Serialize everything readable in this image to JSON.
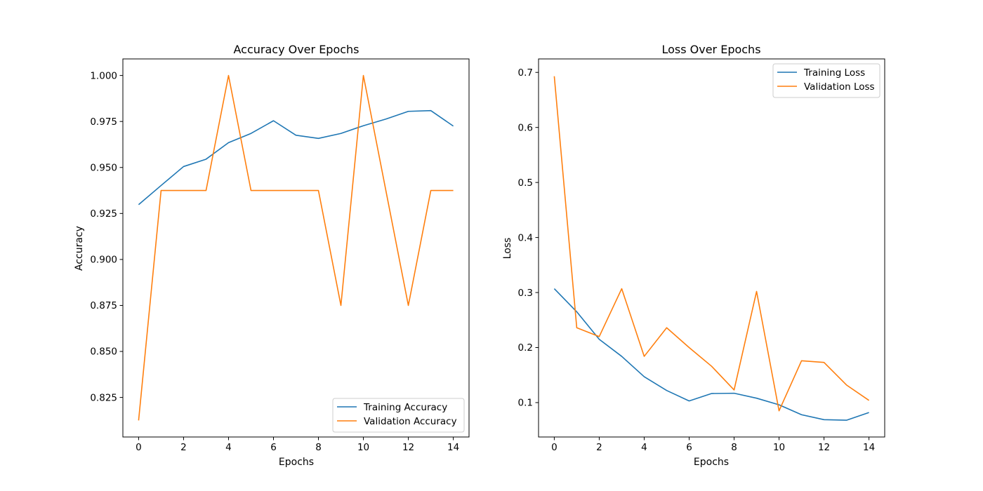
{
  "colors": {
    "training": "#1f77b4",
    "validation": "#ff7f0e"
  },
  "chart_data": [
    {
      "type": "line",
      "title": "Accuracy Over Epochs",
      "xlabel": "Epochs",
      "ylabel": "Accuracy",
      "xlim": [
        -0.7,
        14.7
      ],
      "ylim": [
        0.8035,
        1.009
      ],
      "xticks": [
        0,
        2,
        4,
        6,
        8,
        10,
        12,
        14
      ],
      "yticks": [
        0.825,
        0.85,
        0.875,
        0.9,
        0.925,
        0.95,
        0.975,
        1.0
      ],
      "ytick_labels": [
        "0.825",
        "0.850",
        "0.875",
        "0.900",
        "0.925",
        "0.950",
        "0.975",
        "1.000"
      ],
      "legend_position": "lower-right",
      "x": [
        0,
        1,
        2,
        3,
        4,
        5,
        6,
        7,
        8,
        9,
        10,
        11,
        12,
        13,
        14
      ],
      "series": [
        {
          "name": "Training Accuracy",
          "color": "#1f77b4",
          "values": [
            0.9298,
            0.9402,
            0.9505,
            0.9545,
            0.9635,
            0.9685,
            0.9754,
            0.9675,
            0.9658,
            0.9685,
            0.9727,
            0.9763,
            0.9805,
            0.9809,
            0.9725
          ]
        },
        {
          "name": "Validation Accuracy",
          "color": "#ff7f0e",
          "values": [
            0.8125,
            0.9375,
            0.9375,
            0.9375,
            1.0,
            0.9375,
            0.9375,
            0.9375,
            0.9375,
            0.875,
            1.0,
            0.9375,
            0.875,
            0.9375,
            0.9375
          ]
        }
      ]
    },
    {
      "type": "line",
      "title": "Loss Over Epochs",
      "xlabel": "Epochs",
      "ylabel": "Loss",
      "xlim": [
        -0.7,
        14.7
      ],
      "ylim": [
        0.0375,
        0.7245
      ],
      "xticks": [
        0,
        2,
        4,
        6,
        8,
        10,
        12,
        14
      ],
      "yticks": [
        0.1,
        0.2,
        0.3,
        0.4,
        0.5,
        0.6,
        0.7
      ],
      "ytick_labels": [
        "0.1",
        "0.2",
        "0.3",
        "0.4",
        "0.5",
        "0.6",
        "0.7"
      ],
      "legend_position": "upper-right",
      "x": [
        0,
        1,
        2,
        3,
        4,
        5,
        6,
        7,
        8,
        9,
        10,
        11,
        12,
        13,
        14
      ],
      "series": [
        {
          "name": "Training Loss",
          "color": "#1f77b4",
          "values": [
            0.307,
            0.265,
            0.215,
            0.184,
            0.147,
            0.122,
            0.103,
            0.1165,
            0.117,
            0.108,
            0.096,
            0.078,
            0.069,
            0.068,
            0.082
          ]
        },
        {
          "name": "Validation Loss",
          "color": "#ff7f0e",
          "values": [
            0.693,
            0.236,
            0.22,
            0.307,
            0.184,
            0.236,
            0.2,
            0.166,
            0.123,
            0.302,
            0.085,
            0.176,
            0.173,
            0.132,
            0.104
          ]
        }
      ]
    }
  ]
}
